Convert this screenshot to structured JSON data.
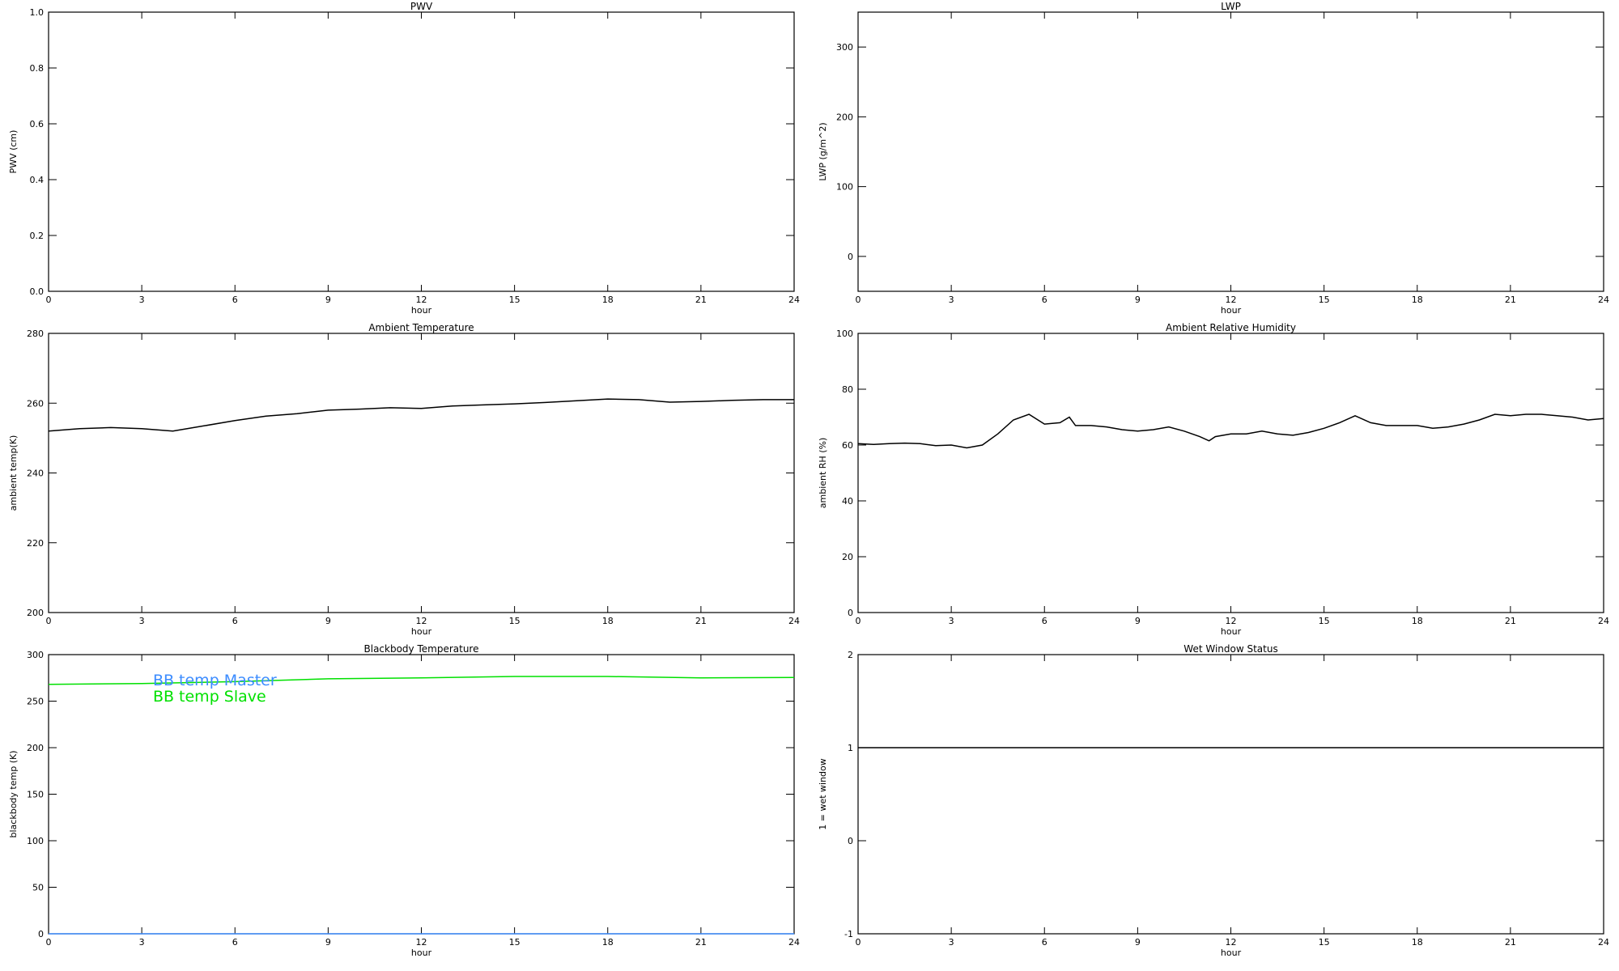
{
  "chart_data": [
    {
      "type": "line",
      "title": "PWV",
      "xlabel": "hour",
      "ylabel": "PWV (cm)",
      "xlim": [
        0,
        24
      ],
      "xticks": [
        0,
        3,
        6,
        9,
        12,
        15,
        18,
        21,
        24
      ],
      "ylim": [
        0,
        1
      ],
      "yticks": [
        {
          "value": 0,
          "label": "0.0"
        },
        {
          "value": 0.2,
          "label": "0.2"
        },
        {
          "value": 0.4,
          "label": "0.4"
        },
        {
          "value": 0.6,
          "label": "0.6"
        },
        {
          "value": 0.8,
          "label": "0.8"
        },
        {
          "value": 1,
          "label": "1.0"
        }
      ]
    },
    {
      "type": "line",
      "title": "LWP",
      "xlabel": "hour",
      "ylabel": "LWP (g/m^2)",
      "xlim": [
        0,
        24
      ],
      "xticks": [
        0,
        3,
        6,
        9,
        12,
        15,
        18,
        21,
        24
      ],
      "ylim": [
        -50,
        350
      ],
      "yticks": [
        0,
        100,
        200,
        300
      ]
    },
    {
      "type": "line",
      "title": "Ambient Temperature",
      "xlabel": "hour",
      "ylabel": "ambient temp(K)",
      "xlim": [
        0,
        24
      ],
      "xticks": [
        0,
        3,
        6,
        9,
        12,
        15,
        18,
        21,
        24
      ],
      "ylim": [
        200,
        280
      ],
      "yticks": [
        200,
        220,
        240,
        260,
        280
      ],
      "x": [
        0,
        1,
        2,
        3,
        4,
        5,
        6,
        7,
        8,
        9,
        10,
        11,
        12,
        13,
        14,
        15,
        16,
        17,
        18,
        19,
        20,
        21,
        22,
        23,
        24
      ],
      "series": [
        {
          "color": "#000000",
          "values": [
            252,
            252.7,
            253,
            252.7,
            252,
            253.5,
            255,
            256.3,
            257,
            258,
            258.3,
            258.7,
            258.5,
            259.2,
            259.5,
            259.8,
            260.2,
            260.7,
            261.2,
            261,
            260.3,
            260.5,
            260.8,
            261,
            261
          ]
        }
      ]
    },
    {
      "type": "line",
      "title": "Ambient Relative Humidity",
      "xlabel": "hour",
      "ylabel": "ambient RH (%)",
      "xlim": [
        0,
        24
      ],
      "xticks": [
        0,
        3,
        6,
        9,
        12,
        15,
        18,
        21,
        24
      ],
      "ylim": [
        0,
        100
      ],
      "yticks": [
        0,
        20,
        40,
        60,
        80,
        100
      ],
      "x": [
        0,
        0.5,
        1,
        1.5,
        2,
        2.5,
        3,
        3.5,
        4,
        4.5,
        5,
        5.5,
        6,
        6.5,
        6.8,
        7,
        7.5,
        8,
        8.5,
        9,
        9.5,
        10,
        10.5,
        11,
        11.3,
        11.5,
        12,
        12.5,
        13,
        13.5,
        14,
        14.5,
        15,
        15.5,
        16,
        16.5,
        17,
        17.5,
        18,
        18.5,
        19,
        19.5,
        20,
        20.5,
        21,
        21.5,
        22,
        22.5,
        23,
        23.5,
        24
      ],
      "series": [
        {
          "color": "#000000",
          "values": [
            60.5,
            60.2,
            60.5,
            60.7,
            60.5,
            59.8,
            60,
            59,
            60,
            64,
            69,
            71,
            67.5,
            68,
            70,
            67,
            67,
            66.5,
            65.5,
            65,
            65.5,
            66.5,
            65,
            63,
            61.5,
            63,
            64,
            64,
            65,
            64,
            63.5,
            64.5,
            66,
            68,
            70.5,
            68,
            67,
            67,
            67,
            66,
            66.5,
            67.5,
            69,
            71,
            70.5,
            71,
            71,
            70.5,
            70,
            69,
            69.5
          ]
        }
      ]
    },
    {
      "type": "line",
      "title": "Blackbody Temperature",
      "xlabel": "hour",
      "ylabel": "blackbody temp (K)",
      "xlim": [
        0,
        24
      ],
      "xticks": [
        0,
        3,
        6,
        9,
        12,
        15,
        18,
        21,
        24
      ],
      "ylim": [
        0,
        300
      ],
      "yticks": [
        0,
        50,
        100,
        150,
        200,
        250,
        300
      ],
      "x": [
        0,
        3,
        6,
        9,
        12,
        15,
        18,
        21,
        24
      ],
      "legend": "upper left",
      "series": [
        {
          "name": "BB temp Master",
          "color": "#3c8cff",
          "values": [
            0,
            0,
            0,
            0,
            0,
            0,
            0,
            0,
            0
          ]
        },
        {
          "name": "BB temp Slave",
          "color": "#00e000",
          "values": [
            268,
            269,
            271,
            274,
            275,
            276.5,
            276.5,
            275,
            275.5
          ]
        }
      ]
    },
    {
      "type": "line",
      "title": "Wet Window Status",
      "xlabel": "hour",
      "ylabel": "1 = wet window",
      "xlim": [
        0,
        24
      ],
      "xticks": [
        0,
        3,
        6,
        9,
        12,
        15,
        18,
        21,
        24
      ],
      "ylim": [
        -1,
        2
      ],
      "yticks": [
        -1,
        0,
        1,
        2
      ],
      "x": [
        0,
        24
      ],
      "series": [
        {
          "color": "#000000",
          "values": [
            1,
            1
          ]
        }
      ]
    }
  ]
}
